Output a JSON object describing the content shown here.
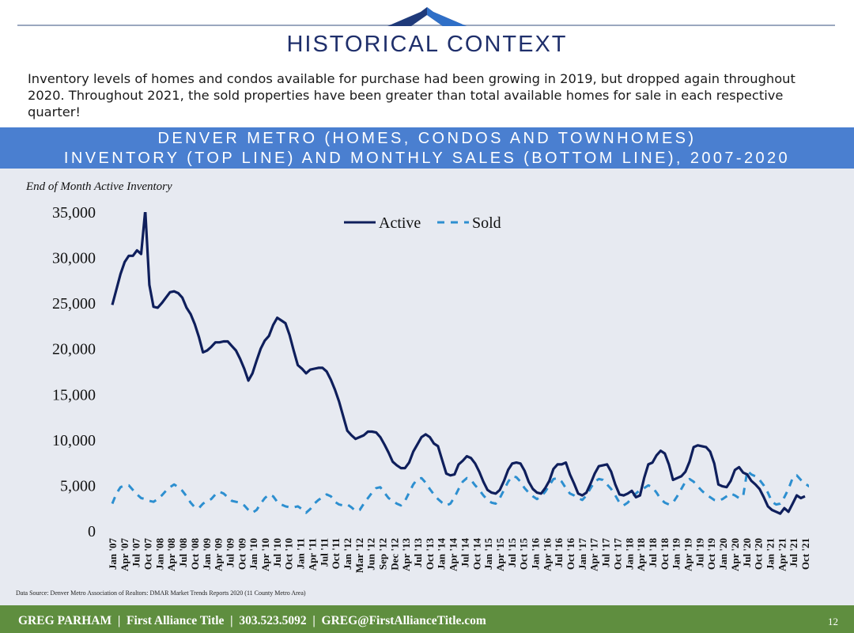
{
  "header": {
    "title": "HISTORICAL CONTEXT",
    "intro": "Inventory levels of homes and condos available for purchase had been growing in 2019, but dropped again throughout 2020. Throughout 2021, the sold properties have been greater than total available homes for sale in each respective quarter!",
    "logo_icon": "mountain-peak-icon",
    "accent_color": "#1f2f6b"
  },
  "banner": {
    "line1": "DENVER METRO (HOMES, CONDOS AND TOWNHOMES)",
    "line2": "INVENTORY (TOP LINE) AND MONTHLY SALES (BOTTOM LINE), 2007-2020",
    "color": "#4a7fd0"
  },
  "chart_data": {
    "type": "line",
    "ylabel": "End of Month Active Inventory",
    "ylim": [
      0,
      35000
    ],
    "yticks": [
      0,
      5000,
      10000,
      15000,
      20000,
      25000,
      30000,
      35000
    ],
    "ytick_labels": [
      "0",
      "5,000",
      "10,000",
      "15,000",
      "20,000",
      "25,000",
      "30,000",
      "35,000"
    ],
    "x_tick_labels": [
      "Jan '07",
      "Apr '07",
      "Jul '07",
      "Oct '07",
      "Jan '08",
      "Apr '08",
      "Jul '08",
      "Oct '08",
      "Jan '09",
      "Apr '09",
      "Jul '09",
      "Oct '09",
      "Jan '10",
      "Apr '10",
      "Jul '10",
      "Oct '10",
      "Jan '11",
      "Apr '11",
      "Jul '11",
      "Oct '11",
      "Jan '12",
      "Mar '12",
      "Jun '12",
      "Sep '12",
      "Dec '12",
      "Apr '13",
      "Jul '13",
      "Oct '13",
      "Jan '14",
      "Apr '14",
      "Jul '14",
      "Oct '14",
      "Jan '15",
      "Apr '15",
      "Jul '15",
      "Oct '15",
      "Jan '16",
      "Apr '16",
      "Jul '16",
      "Oct '16",
      "Jan '17",
      "Apr '17",
      "Jul '17",
      "Oct '17",
      "Jan '18",
      "Apr '18",
      "Jul '18",
      "Oct '18",
      "Jan '19",
      "Apr '19",
      "Jul '19",
      "Oct '19",
      "Jan '20",
      "Apr '20",
      "Jul '20",
      "Oct '20",
      "Jan '21",
      "Apr '21",
      "Jul '21",
      "Oct '21"
    ],
    "legend_position": "top-center",
    "grid": false,
    "series": [
      {
        "name": "Active",
        "style": "solid",
        "color": "#0f1f5c",
        "values": [
          24800,
          26500,
          28200,
          29500,
          30200,
          30200,
          30800,
          30400,
          35200,
          27000,
          24600,
          24500,
          25000,
          25600,
          26200,
          26300,
          26100,
          25600,
          24500,
          23800,
          22700,
          21300,
          19600,
          19800,
          20200,
          20700,
          20700,
          20800,
          20800,
          20300,
          19800,
          18900,
          17800,
          16500,
          17300,
          18700,
          20000,
          20900,
          21400,
          22600,
          23400,
          23100,
          22800,
          21500,
          19800,
          18200,
          17800,
          17300,
          17700,
          17800,
          17900,
          17900,
          17500,
          16600,
          15500,
          14200,
          12600,
          11000,
          10500,
          10100,
          10300,
          10500,
          10900,
          10900,
          10800,
          10300,
          9500,
          8600,
          7600,
          7200,
          6900,
          6900,
          7500,
          8700,
          9500,
          10300,
          10600,
          10300,
          9600,
          9300,
          7800,
          6300,
          6100,
          6200,
          7300,
          7700,
          8200,
          8000,
          7400,
          6500,
          5400,
          4500,
          4200,
          4100,
          4500,
          5500,
          6700,
          7400,
          7500,
          7400,
          6600,
          5400,
          4600,
          4200,
          4100,
          4700,
          5500,
          6800,
          7300,
          7300,
          7500,
          6200,
          5200,
          4100,
          3900,
          4200,
          5200,
          6300,
          7100,
          7200,
          7300,
          6500,
          5100,
          4000,
          3900,
          4100,
          4400,
          3700,
          3900,
          5800,
          7300,
          7500,
          8300,
          8800,
          8500,
          7300,
          5600,
          5800,
          6000,
          6500,
          7600,
          9200,
          9400,
          9300,
          9200,
          8700,
          7400,
          5100,
          4900,
          4800,
          5500,
          6700,
          7000,
          6400,
          6200,
          5500,
          5100,
          4600,
          3700,
          2700,
          2300,
          2100,
          1900,
          2500,
          2100,
          3000,
          3900,
          3600,
          3800
        ]
      },
      {
        "name": "Sold",
        "style": "dashed",
        "color": "#2d8fd0",
        "values": [
          3000,
          4100,
          4800,
          5000,
          5000,
          4500,
          4000,
          3600,
          3500,
          3300,
          3200,
          3500,
          3900,
          4400,
          4800,
          5100,
          4800,
          4400,
          3800,
          3100,
          2600,
          2500,
          3000,
          3300,
          3500,
          4000,
          4300,
          4100,
          3700,
          3300,
          3200,
          3100,
          2800,
          2300,
          2000,
          2300,
          3000,
          3600,
          4000,
          3800,
          3200,
          2900,
          2700,
          2600,
          2600,
          2700,
          2400,
          2000,
          2400,
          3000,
          3400,
          3700,
          4000,
          3800,
          3200,
          2900,
          2800,
          2900,
          2600,
          2200,
          2300,
          3000,
          3600,
          4200,
          4700,
          4800,
          4200,
          3600,
          3300,
          3000,
          2800,
          3300,
          4200,
          5100,
          5700,
          5800,
          5300,
          4600,
          4000,
          3500,
          3100,
          2800,
          3000,
          3700,
          4600,
          5400,
          5800,
          5600,
          5000,
          4500,
          3900,
          3400,
          3100,
          3000,
          3600,
          4500,
          5400,
          6000,
          5900,
          5400,
          4700,
          4200,
          3800,
          3500,
          3800,
          4300,
          5000,
          5700,
          5800,
          5400,
          4700,
          4100,
          3900,
          3600,
          3400,
          3900,
          4700,
          5400,
          5700,
          5600,
          5100,
          4600,
          3900,
          3100,
          2800,
          3100,
          3600,
          4100,
          4500,
          4700,
          5000,
          4800,
          4200,
          3500,
          3100,
          2900,
          3100,
          3800,
          4600,
          5400,
          5700,
          5400,
          4900,
          4400,
          4000,
          3700,
          3400,
          3300,
          3500,
          3800,
          4100,
          3900,
          3600,
          3800,
          6600,
          6200,
          6000,
          5600,
          5000,
          4200,
          3200,
          2900,
          3000,
          3700,
          4600,
          5800,
          6100,
          5600,
          5200,
          4900,
          5000
        ]
      }
    ]
  },
  "source_note": "Data Source: Denver Metro Association of Realtors: DMAR Market Trends Reports 2020 (11 County Metro Area)",
  "footer": {
    "text": "GREG PARHAM  |  First Alliance Title  |  303.523.5092  |  GREG@FirstAllianceTitle.com",
    "page_number": "12",
    "color": "#5f8e3f"
  }
}
